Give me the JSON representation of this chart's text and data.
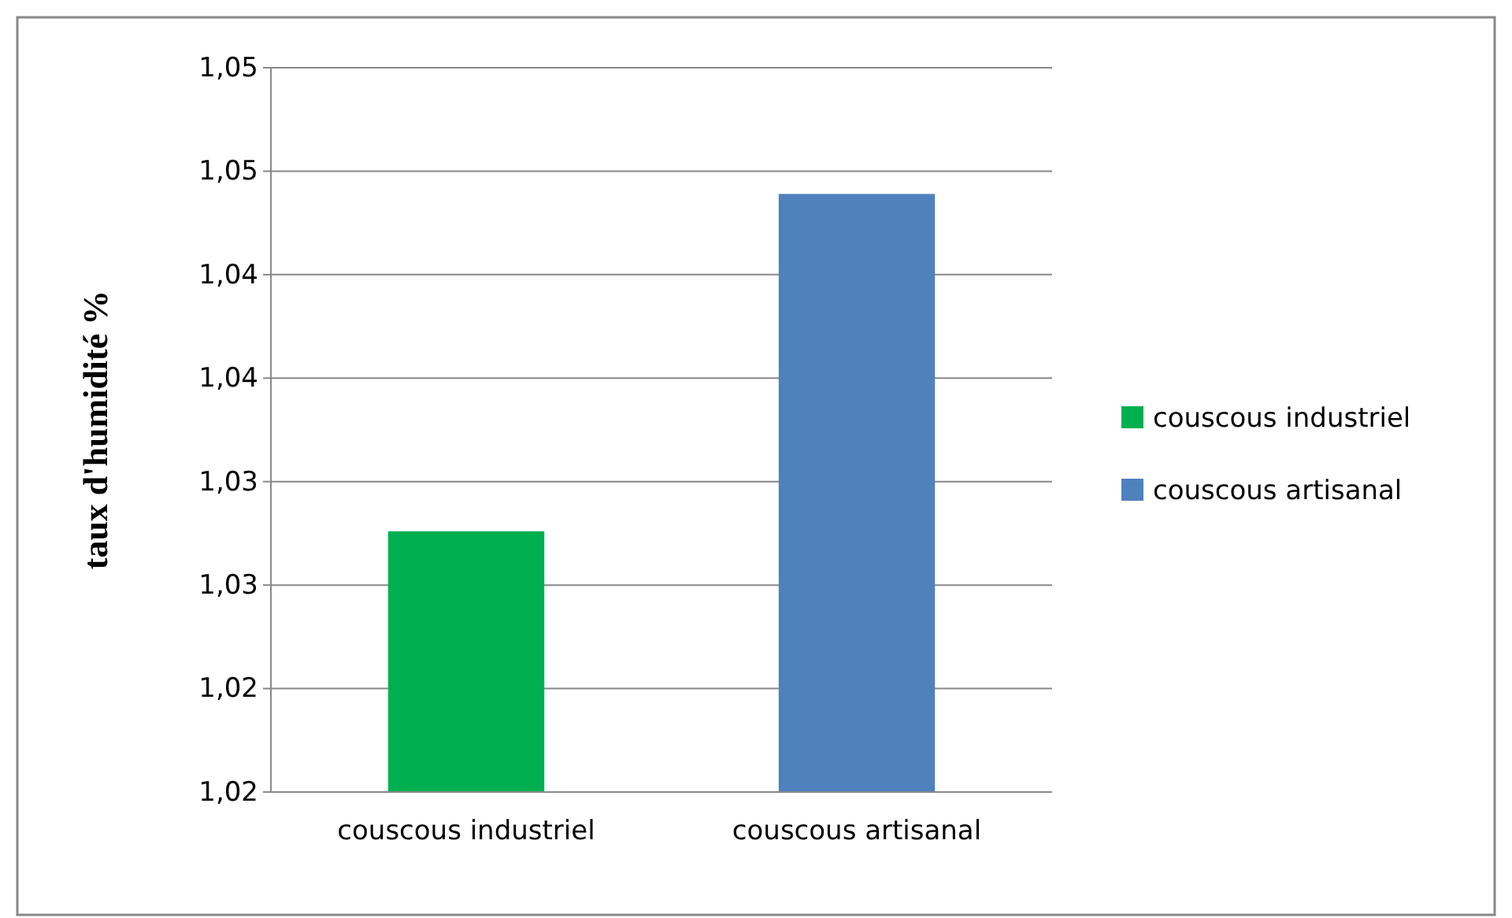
{
  "chart_data": {
    "type": "bar",
    "ylabel": "taux d'humidité %",
    "categories": [
      "couscous industriel",
      "couscous artisanal"
    ],
    "series": [
      {
        "name": "couscous industriel",
        "color": "#00b050",
        "values": [
          1.0326,
          null
        ]
      },
      {
        "name": "couscous artisanal",
        "color": "#4f81bd",
        "values": [
          null,
          1.0489
        ]
      }
    ],
    "ylim": [
      1.02,
      1.055
    ],
    "yticks": [
      {
        "value": 1.02,
        "label": "1,02"
      },
      {
        "value": 1.025,
        "label": "1,02"
      },
      {
        "value": 1.03,
        "label": "1,03"
      },
      {
        "value": 1.035,
        "label": "1,03"
      },
      {
        "value": 1.04,
        "label": "1,04"
      },
      {
        "value": 1.045,
        "label": "1,04"
      },
      {
        "value": 1.05,
        "label": "1,05"
      },
      {
        "value": 1.055,
        "label": "1,05"
      }
    ],
    "grid": "y",
    "legend": "right"
  }
}
